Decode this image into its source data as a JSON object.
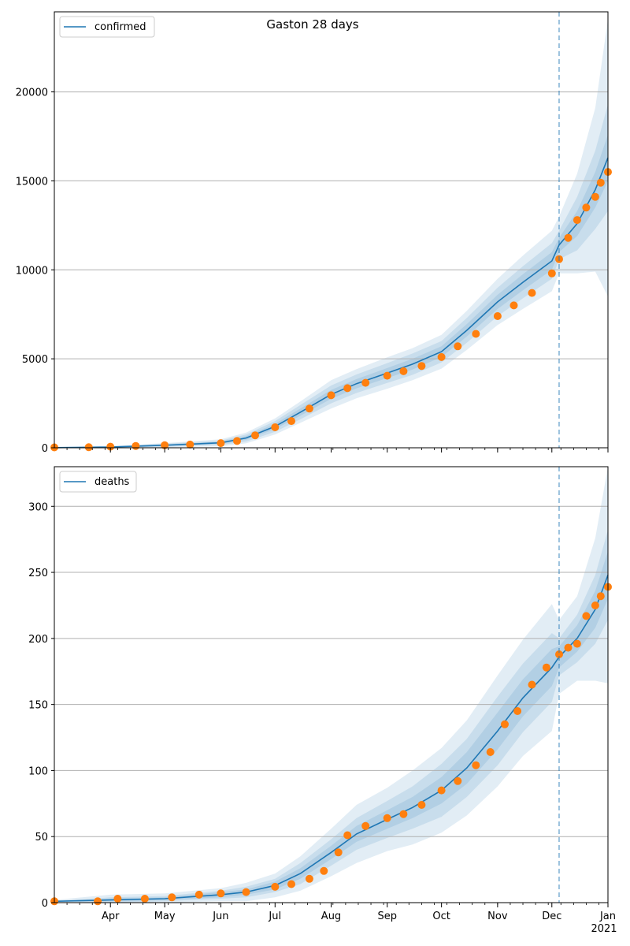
{
  "chart_data": [
    {
      "type": "line",
      "title": "Gaston 28 days",
      "legend": {
        "label": "confirmed",
        "placement": "top-left"
      },
      "ylim": [
        0,
        24500
      ],
      "y_ticks": [
        0,
        5000,
        10000,
        15000,
        20000
      ],
      "grid": "y",
      "x_domain": [
        "2020-03-01",
        "2021-01-01"
      ],
      "vline_date": "2020-12-05",
      "colors": {
        "model": "#1f77b4",
        "observed": "#ff7f0e",
        "band": "#1f77b4"
      },
      "model_x": [
        "2020-03-01",
        "2020-04-01",
        "2020-05-01",
        "2020-06-01",
        "2020-06-15",
        "2020-07-01",
        "2020-07-15",
        "2020-08-01",
        "2020-08-15",
        "2020-09-01",
        "2020-09-15",
        "2020-10-01",
        "2020-10-15",
        "2020-11-01",
        "2020-11-15",
        "2020-12-01",
        "2020-12-05",
        "2020-12-15",
        "2020-12-25",
        "2021-01-01"
      ],
      "model_y": [
        10,
        40,
        140,
        280,
        550,
        1200,
        2000,
        3000,
        3600,
        4200,
        4700,
        5400,
        6600,
        8200,
        9300,
        10500,
        11400,
        12600,
        14500,
        16300
      ],
      "band_widths": {
        "inner": [
          0,
          20,
          40,
          60,
          100,
          150,
          200,
          250,
          260,
          280,
          300,
          300,
          350,
          400,
          450,
          500,
          400,
          700,
          1000,
          1300
        ],
        "middle": [
          0,
          40,
          80,
          120,
          200,
          300,
          400,
          500,
          520,
          560,
          600,
          600,
          700,
          800,
          900,
          1000,
          800,
          1500,
          2200,
          3000
        ],
        "outer": [
          0,
          60,
          120,
          200,
          300,
          450,
          600,
          800,
          820,
          880,
          900,
          950,
          1100,
          1300,
          1500,
          1700,
          1600,
          2800,
          4600,
          7800
        ]
      },
      "observed": {
        "x": [
          "2020-03-01",
          "2020-03-20",
          "2020-04-01",
          "2020-04-15",
          "2020-05-01",
          "2020-05-15",
          "2020-06-01",
          "2020-06-10",
          "2020-06-20",
          "2020-07-01",
          "2020-07-10",
          "2020-07-20",
          "2020-08-01",
          "2020-08-10",
          "2020-08-20",
          "2020-09-01",
          "2020-09-10",
          "2020-09-20",
          "2020-10-01",
          "2020-10-10",
          "2020-10-20",
          "2020-11-01",
          "2020-11-10",
          "2020-11-20",
          "2020-12-01",
          "2020-12-05",
          "2020-12-10",
          "2020-12-15",
          "2020-12-20",
          "2020-12-25",
          "2020-12-28",
          "2021-01-01"
        ],
        "y": [
          20,
          30,
          60,
          100,
          140,
          180,
          260,
          380,
          700,
          1150,
          1500,
          2200,
          2950,
          3350,
          3650,
          4050,
          4300,
          4600,
          5100,
          5700,
          6400,
          7400,
          8000,
          8700,
          9800,
          10600,
          11800,
          12800,
          13500,
          14100,
          14900,
          15500
        ]
      }
    },
    {
      "type": "line",
      "legend": {
        "label": "deaths",
        "placement": "top-left"
      },
      "ylim": [
        0,
        330
      ],
      "y_ticks": [
        0,
        50,
        100,
        150,
        200,
        250,
        300
      ],
      "grid": "y",
      "x_domain": [
        "2020-03-01",
        "2021-01-01"
      ],
      "x_ticks": [
        "Apr",
        "May",
        "Jun",
        "Jul",
        "Aug",
        "Sep",
        "Oct",
        "Nov",
        "Dec",
        "Jan"
      ],
      "x_tick_dates": [
        "2020-04-01",
        "2020-05-01",
        "2020-06-01",
        "2020-07-01",
        "2020-08-01",
        "2020-09-01",
        "2020-10-01",
        "2020-11-01",
        "2020-12-01",
        "2021-01-01"
      ],
      "x_sublabel": "2021",
      "vline_date": "2020-12-05",
      "colors": {
        "model": "#1f77b4",
        "observed": "#ff7f0e",
        "band": "#1f77b4"
      },
      "model_x": [
        "2020-03-01",
        "2020-04-01",
        "2020-05-01",
        "2020-06-01",
        "2020-06-15",
        "2020-07-01",
        "2020-07-15",
        "2020-08-01",
        "2020-08-15",
        "2020-09-01",
        "2020-09-15",
        "2020-10-01",
        "2020-10-15",
        "2020-11-01",
        "2020-11-15",
        "2020-12-01",
        "2020-12-05",
        "2020-12-15",
        "2020-12-25",
        "2021-01-01"
      ],
      "model_y": [
        1,
        2,
        3,
        6,
        8,
        13,
        22,
        38,
        52,
        63,
        72,
        85,
        102,
        130,
        155,
        178,
        186,
        200,
        222,
        248
      ],
      "band_widths": {
        "inner": [
          0,
          1,
          1,
          2,
          2,
          3,
          4,
          5,
          6,
          7,
          8,
          10,
          12,
          14,
          14,
          14,
          8,
          10,
          14,
          18
        ],
        "middle": [
          0,
          2,
          2,
          3,
          4,
          5,
          8,
          10,
          12,
          14,
          16,
          20,
          22,
          26,
          26,
          26,
          14,
          18,
          26,
          34
        ],
        "outer": [
          1,
          4,
          4,
          5,
          7,
          9,
          13,
          18,
          22,
          24,
          28,
          32,
          36,
          42,
          44,
          48,
          28,
          32,
          54,
          82
        ]
      },
      "observed": {
        "x": [
          "2020-03-01",
          "2020-03-25",
          "2020-04-05",
          "2020-04-20",
          "2020-05-05",
          "2020-05-20",
          "2020-06-01",
          "2020-06-15",
          "2020-07-01",
          "2020-07-10",
          "2020-07-20",
          "2020-07-28",
          "2020-08-05",
          "2020-08-10",
          "2020-08-20",
          "2020-09-01",
          "2020-09-10",
          "2020-09-20",
          "2020-10-01",
          "2020-10-10",
          "2020-10-20",
          "2020-10-28",
          "2020-11-05",
          "2020-11-12",
          "2020-11-20",
          "2020-11-28",
          "2020-12-05",
          "2020-12-10",
          "2020-12-15",
          "2020-12-20",
          "2020-12-25",
          "2020-12-28",
          "2021-01-01"
        ],
        "y": [
          1,
          1,
          3,
          3,
          4,
          6,
          7,
          8,
          12,
          14,
          18,
          24,
          38,
          51,
          58,
          64,
          67,
          74,
          85,
          92,
          104,
          114,
          135,
          145,
          165,
          178,
          188,
          193,
          196,
          217,
          225,
          232,
          239
        ]
      }
    }
  ]
}
